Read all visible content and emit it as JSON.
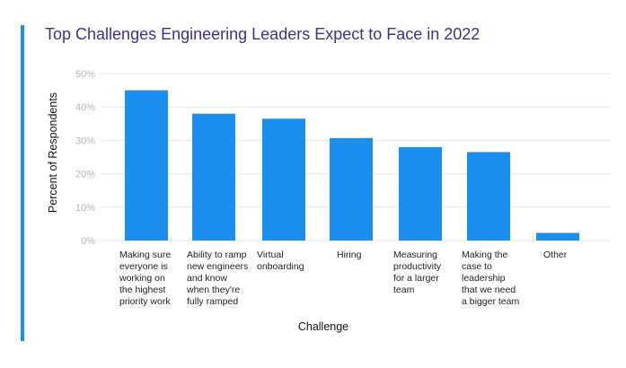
{
  "colors": {
    "accent": "#1a8ff0",
    "bar": "#1a8ff0",
    "title": "#3b3486",
    "grid": "#e3e3e3"
  },
  "chart_data": {
    "type": "bar",
    "title": "Top Challenges Engineering Leaders Expect to Face in 2022",
    "xlabel": "Challenge",
    "ylabel": "Percent of Respondents",
    "ylim": [
      0,
      50
    ],
    "yticks": [
      0,
      10,
      20,
      30,
      40,
      50
    ],
    "ytick_labels": [
      "0%",
      "10%",
      "20%",
      "30%",
      "40%",
      "50%"
    ],
    "grid": true,
    "legend": "none",
    "categories": [
      "Making sure everyone is working on the highest priority work",
      "Ability to ramp new engineers and know when they're fully ramped",
      "Virtual onboarding",
      "Hiring",
      "Measuring productivity for a larger team",
      "Making the case to leadership that we need a bigger team",
      "Other"
    ],
    "category_lines": [
      [
        "Making sure",
        "everyone is",
        "working on",
        "the highest",
        "priority work"
      ],
      [
        "Ability to ramp",
        "new engineers",
        "and know",
        "when they're",
        "fully ramped"
      ],
      [
        "Virtual",
        "onboarding"
      ],
      [
        "Hiring"
      ],
      [
        "Measuring",
        "productivity",
        "for a larger",
        "team"
      ],
      [
        "Making the",
        "case to",
        "leadership",
        "that we need",
        "a bigger team"
      ],
      [
        "Other"
      ]
    ],
    "values": [
      45,
      38,
      36.5,
      30.7,
      28,
      26.5,
      2.3
    ]
  }
}
